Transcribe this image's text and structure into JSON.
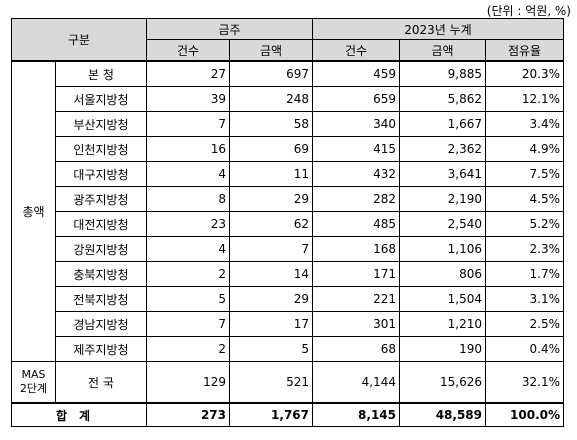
{
  "unit_note": "(단위 : 억원, %)",
  "header": {
    "category": "구분",
    "group_week": "금주",
    "group_ytd": "2023년 누계",
    "count": "건수",
    "amount": "금액",
    "share": "점유율"
  },
  "section_label": "총액",
  "mas_label_1": "MAS",
  "mas_label_2": "2단계",
  "rows": [
    {
      "name": "본    청",
      "w_cnt": "27",
      "w_amt": "697",
      "y_cnt": "459",
      "y_amt": "9,885",
      "share": "20.3%"
    },
    {
      "name": "서울지방청",
      "w_cnt": "39",
      "w_amt": "248",
      "y_cnt": "659",
      "y_amt": "5,862",
      "share": "12.1%"
    },
    {
      "name": "부산지방청",
      "w_cnt": "7",
      "w_amt": "58",
      "y_cnt": "340",
      "y_amt": "1,667",
      "share": "3.4%"
    },
    {
      "name": "인천지방청",
      "w_cnt": "16",
      "w_amt": "69",
      "y_cnt": "415",
      "y_amt": "2,362",
      "share": "4.9%"
    },
    {
      "name": "대구지방청",
      "w_cnt": "4",
      "w_amt": "11",
      "y_cnt": "432",
      "y_amt": "3,641",
      "share": "7.5%"
    },
    {
      "name": "광주지방청",
      "w_cnt": "8",
      "w_amt": "29",
      "y_cnt": "282",
      "y_amt": "2,190",
      "share": "4.5%"
    },
    {
      "name": "대전지방청",
      "w_cnt": "23",
      "w_amt": "62",
      "y_cnt": "485",
      "y_amt": "2,540",
      "share": "5.2%"
    },
    {
      "name": "강원지방청",
      "w_cnt": "4",
      "w_amt": "7",
      "y_cnt": "168",
      "y_amt": "1,106",
      "share": "2.3%"
    },
    {
      "name": "충북지방청",
      "w_cnt": "2",
      "w_amt": "14",
      "y_cnt": "171",
      "y_amt": "806",
      "share": "1.7%"
    },
    {
      "name": "전북지방청",
      "w_cnt": "5",
      "w_amt": "29",
      "y_cnt": "221",
      "y_amt": "1,504",
      "share": "3.1%"
    },
    {
      "name": "경남지방청",
      "w_cnt": "7",
      "w_amt": "17",
      "y_cnt": "301",
      "y_amt": "1,210",
      "share": "2.5%"
    },
    {
      "name": "제주지방청",
      "w_cnt": "2",
      "w_amt": "5",
      "y_cnt": "68",
      "y_amt": "190",
      "share": "0.4%"
    }
  ],
  "mas_row": {
    "name": "전    국",
    "w_cnt": "129",
    "w_amt": "521",
    "y_cnt": "4,144",
    "y_amt": "15,626",
    "share": "32.1%"
  },
  "total": {
    "label": "합계",
    "w_cnt": "273",
    "w_amt": "1,767",
    "y_cnt": "8,145",
    "y_amt": "48,589",
    "share": "100.0%"
  }
}
